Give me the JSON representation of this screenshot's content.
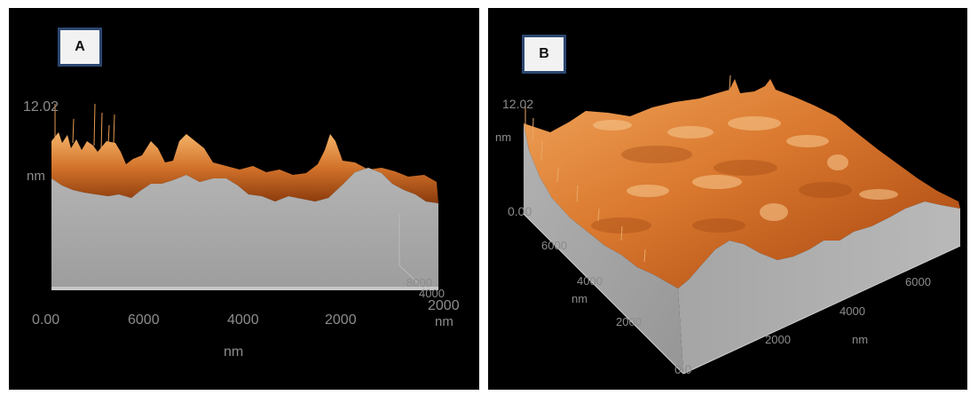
{
  "panel_a": {
    "label": "A",
    "z_max": "12.02",
    "z_unit": "nm",
    "x_ticks": [
      "0.00",
      "6000",
      "4000",
      "2000",
      "2000"
    ],
    "x_unit": "nm",
    "depth_ticks": [
      "8000",
      "4000"
    ],
    "depth_unit": "nm"
  },
  "panel_b": {
    "label": "B",
    "z_max": "12.02",
    "z_unit": "nm",
    "z_min": "0.00",
    "y_ticks": [
      "6000",
      "4000",
      "2000"
    ],
    "y_unit": "nm",
    "origin": "0 0",
    "x_ticks": [
      "2000",
      "4000",
      "6000"
    ],
    "x_unit": "nm"
  },
  "colors": {
    "surface_light": "#f0a860",
    "surface_mid": "#cf6b24",
    "surface_dark": "#7a2f08",
    "side_wall": "#a9a9a9",
    "background": "#000000"
  }
}
